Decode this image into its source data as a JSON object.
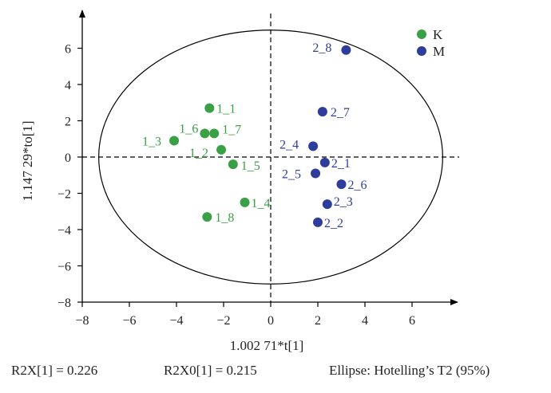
{
  "chart_data": {
    "type": "scatter",
    "xlabel": "1.002 71*t[1]",
    "ylabel": "1.147 29*to[1]",
    "xlim": [
      -8,
      8
    ],
    "ylim": [
      -8,
      8
    ],
    "xticks": [
      "−8",
      "−6",
      "−4",
      "−2",
      "0",
      "2",
      "4",
      "6"
    ],
    "yticks": [
      "−8",
      "−6",
      "−4",
      "−2",
      "0",
      "2",
      "4",
      "6"
    ],
    "xtick_values": [
      -8,
      -6,
      -4,
      -2,
      0,
      2,
      4,
      6
    ],
    "ytick_values": [
      -8,
      -6,
      -4,
      -2,
      0,
      2,
      4,
      6
    ],
    "ellipse": {
      "rx": 7.3,
      "ry": 7.0
    },
    "legend_position": "top-right",
    "series": [
      {
        "name": "K",
        "color": "#3aa045",
        "points": [
          {
            "label": "1_1",
            "x": -2.6,
            "y": 2.7
          },
          {
            "label": "1_6",
            "x": -2.8,
            "y": 1.3
          },
          {
            "label": "1_7",
            "x": -2.4,
            "y": 1.3
          },
          {
            "label": "1_3",
            "x": -4.1,
            "y": 0.9
          },
          {
            "label": "1_2",
            "x": -2.1,
            "y": 0.4
          },
          {
            "label": "1_5",
            "x": -1.6,
            "y": -0.4
          },
          {
            "label": "1_4",
            "x": -1.1,
            "y": -2.5
          },
          {
            "label": "1_8",
            "x": -2.7,
            "y": -3.3
          }
        ]
      },
      {
        "name": "M",
        "color": "#2e3d9a",
        "points": [
          {
            "label": "2_8",
            "x": 3.2,
            "y": 5.9
          },
          {
            "label": "2_7",
            "x": 2.2,
            "y": 2.5
          },
          {
            "label": "2_4",
            "x": 1.8,
            "y": 0.6
          },
          {
            "label": "2_1",
            "x": 2.3,
            "y": -0.3
          },
          {
            "label": "2_5",
            "x": 1.9,
            "y": -0.9
          },
          {
            "label": "2_6",
            "x": 3.0,
            "y": -1.5
          },
          {
            "label": "2_3",
            "x": 2.4,
            "y": -2.6
          },
          {
            "label": "2_2",
            "x": 2.0,
            "y": -3.6
          }
        ]
      }
    ]
  },
  "footer": {
    "r2x": "R2X[1] = 0.226",
    "r2x0": "R2X0[1] = 0.215",
    "ellipse_note": "Ellipse: Hotelling’s T2 (95%)"
  }
}
